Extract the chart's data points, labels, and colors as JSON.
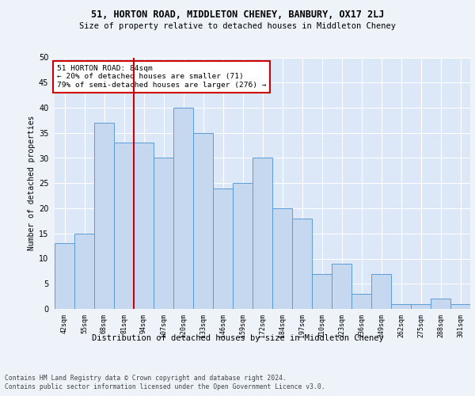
{
  "title": "51, HORTON ROAD, MIDDLETON CHENEY, BANBURY, OX17 2LJ",
  "subtitle": "Size of property relative to detached houses in Middleton Cheney",
  "xlabel": "Distribution of detached houses by size in Middleton Cheney",
  "ylabel": "Number of detached properties",
  "bar_values": [
    13,
    15,
    37,
    33,
    33,
    30,
    40,
    35,
    24,
    25,
    30,
    20,
    18,
    7,
    9,
    3,
    7,
    1,
    1,
    2,
    1
  ],
  "bin_labels": [
    "42sqm",
    "55sqm",
    "68sqm",
    "81sqm",
    "94sqm",
    "107sqm",
    "120sqm",
    "133sqm",
    "146sqm",
    "159sqm",
    "172sqm",
    "184sqm",
    "197sqm",
    "210sqm",
    "223sqm",
    "236sqm",
    "249sqm",
    "262sqm",
    "275sqm",
    "288sqm",
    "301sqm"
  ],
  "bar_color": "#c5d8f0",
  "bar_edge_color": "#5b9bd5",
  "background_color": "#eef3fa",
  "plot_bg_color": "#dce8f7",
  "annotation_text": "51 HORTON ROAD: 84sqm\n← 20% of detached houses are smaller (71)\n79% of semi-detached houses are larger (276) →",
  "annotation_box_color": "#ffffff",
  "annotation_box_edge_color": "#cc0000",
  "footer_line1": "Contains HM Land Registry data © Crown copyright and database right 2024.",
  "footer_line2": "Contains public sector information licensed under the Open Government Licence v3.0.",
  "ylim": [
    0,
    50
  ],
  "yticks": [
    0,
    5,
    10,
    15,
    20,
    25,
    30,
    35,
    40,
    45,
    50
  ],
  "red_line_color": "#cc0000",
  "red_line_x": 3.5
}
